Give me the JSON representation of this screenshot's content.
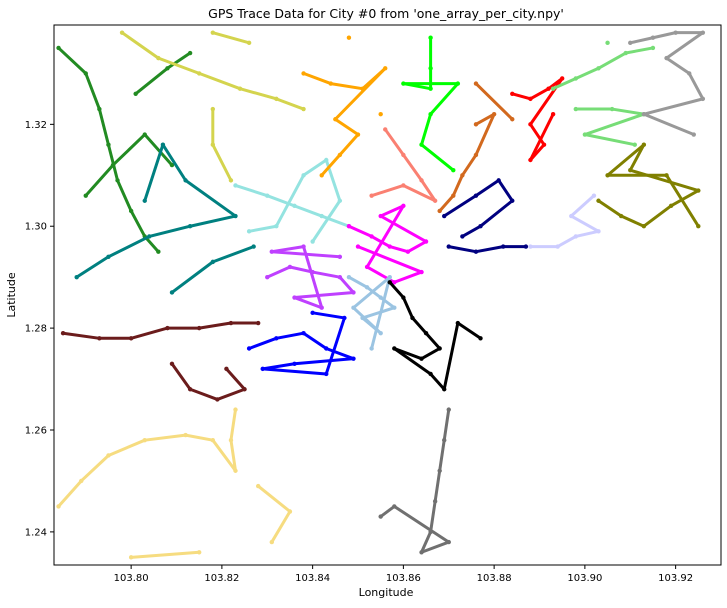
{
  "chart_data": {
    "type": "scatter",
    "title": "GPS Trace Data for City #0 from 'one_array_per_city.npy'",
    "xlabel": "Longitude",
    "ylabel": "Latitude",
    "xlim": [
      103.783,
      103.93
    ],
    "ylim": [
      1.2335,
      1.3395
    ],
    "xticks": [
      103.8,
      103.82,
      103.84,
      103.86,
      103.88,
      103.9,
      103.92
    ],
    "xtick_labels": [
      "103.80",
      "103.82",
      "103.84",
      "103.86",
      "103.88",
      "103.90",
      "103.92"
    ],
    "yticks": [
      1.24,
      1.26,
      1.28,
      1.3,
      1.32
    ],
    "ytick_labels": [
      "1.24",
      "1.26",
      "1.28",
      "1.30",
      "1.32"
    ],
    "grid": false,
    "legend": "none",
    "series": [
      {
        "color": "#228B22",
        "points": [
          [
            103.784,
            1.335
          ],
          [
            103.79,
            1.33
          ],
          [
            103.793,
            1.323
          ],
          [
            103.795,
            1.316
          ],
          [
            103.797,
            1.309
          ],
          [
            103.8,
            1.303
          ],
          [
            103.803,
            1.298
          ],
          [
            103.806,
            1.295
          ],
          [
            103.79,
            1.306
          ],
          [
            103.796,
            1.312
          ],
          [
            103.803,
            1.318
          ],
          [
            103.809,
            1.312
          ],
          [
            103.801,
            1.326
          ],
          [
            103.808,
            1.331
          ],
          [
            103.813,
            1.334
          ]
        ]
      },
      {
        "color": "#D4D44E",
        "points": [
          [
            103.798,
            1.338
          ],
          [
            103.806,
            1.333
          ],
          [
            103.815,
            1.33
          ],
          [
            103.824,
            1.327
          ],
          [
            103.832,
            1.325
          ],
          [
            103.838,
            1.323
          ],
          [
            103.818,
            1.323
          ],
          [
            103.818,
            1.316
          ],
          [
            103.822,
            1.309
          ],
          [
            103.826,
            1.336
          ],
          [
            103.818,
            1.338
          ]
        ]
      },
      {
        "color": "#008080",
        "points": [
          [
            103.788,
            1.29
          ],
          [
            103.795,
            1.294
          ],
          [
            103.804,
            1.298
          ],
          [
            103.813,
            1.3
          ],
          [
            103.823,
            1.302
          ],
          [
            103.812,
            1.309
          ],
          [
            103.807,
            1.316
          ],
          [
            103.803,
            1.305
          ],
          [
            103.809,
            1.287
          ],
          [
            103.818,
            1.293
          ],
          [
            103.827,
            1.296
          ]
        ]
      },
      {
        "color": "#94E3E0",
        "points": [
          [
            103.823,
            1.308
          ],
          [
            103.83,
            1.306
          ],
          [
            103.836,
            1.304
          ],
          [
            103.842,
            1.302
          ],
          [
            103.848,
            1.3
          ],
          [
            103.826,
            1.299
          ],
          [
            103.832,
            1.3
          ],
          [
            103.838,
            1.31
          ],
          [
            103.843,
            1.313
          ],
          [
            103.846,
            1.305
          ],
          [
            103.84,
            1.297
          ]
        ]
      },
      {
        "color": "#FFA500",
        "points": [
          [
            103.838,
            1.33
          ],
          [
            103.844,
            1.328
          ],
          [
            103.851,
            1.327
          ],
          [
            103.856,
            1.331
          ],
          [
            103.845,
            1.321
          ],
          [
            103.85,
            1.318
          ],
          [
            103.846,
            1.314
          ],
          [
            103.842,
            1.31
          ],
          [
            103.855,
            1.322
          ],
          [
            103.848,
            1.337
          ]
        ]
      },
      {
        "color": "#00FF00",
        "points": [
          [
            103.866,
            1.337
          ],
          [
            103.866,
            1.331
          ],
          [
            103.866,
            1.327
          ],
          [
            103.86,
            1.328
          ],
          [
            103.872,
            1.328
          ],
          [
            103.866,
            1.322
          ],
          [
            103.864,
            1.316
          ],
          [
            103.871,
            1.311
          ]
        ]
      },
      {
        "color": "#FA8072",
        "points": [
          [
            103.856,
            1.319
          ],
          [
            103.86,
            1.314
          ],
          [
            103.864,
            1.309
          ],
          [
            103.867,
            1.305
          ],
          [
            103.86,
            1.308
          ],
          [
            103.853,
            1.306
          ]
        ]
      },
      {
        "color": "#D2691E",
        "points": [
          [
            103.876,
            1.32
          ],
          [
            103.88,
            1.322
          ],
          [
            103.876,
            1.314
          ],
          [
            103.873,
            1.31
          ],
          [
            103.871,
            1.306
          ],
          [
            103.868,
            1.303
          ],
          [
            103.876,
            1.328
          ],
          [
            103.884,
            1.321
          ]
        ]
      },
      {
        "color": "#FF0000",
        "points": [
          [
            103.884,
            1.326
          ],
          [
            103.888,
            1.325
          ],
          [
            103.892,
            1.327
          ],
          [
            103.895,
            1.329
          ],
          [
            103.888,
            1.32
          ],
          [
            103.891,
            1.316
          ],
          [
            103.888,
            1.313
          ],
          [
            103.893,
            1.322
          ]
        ]
      },
      {
        "color": "#77DD77",
        "points": [
          [
            103.893,
            1.327
          ],
          [
            103.898,
            1.329
          ],
          [
            103.903,
            1.331
          ],
          [
            103.909,
            1.334
          ],
          [
            103.915,
            1.335
          ],
          [
            103.898,
            1.323
          ],
          [
            103.906,
            1.323
          ],
          [
            103.913,
            1.322
          ],
          [
            103.9,
            1.318
          ],
          [
            103.911,
            1.316
          ],
          [
            103.905,
            1.336
          ]
        ]
      },
      {
        "color": "#999999",
        "points": [
          [
            103.91,
            1.336
          ],
          [
            103.915,
            1.337
          ],
          [
            103.92,
            1.338
          ],
          [
            103.926,
            1.338
          ],
          [
            103.918,
            1.333
          ],
          [
            103.923,
            1.33
          ],
          [
            103.926,
            1.325
          ],
          [
            103.913,
            1.322
          ],
          [
            103.924,
            1.318
          ]
        ]
      },
      {
        "color": "#808000",
        "points": [
          [
            103.903,
            1.305
          ],
          [
            103.908,
            1.302
          ],
          [
            103.913,
            1.3
          ],
          [
            103.919,
            1.304
          ],
          [
            103.925,
            1.307
          ],
          [
            103.91,
            1.311
          ],
          [
            103.913,
            1.316
          ],
          [
            103.905,
            1.31
          ],
          [
            103.918,
            1.31
          ],
          [
            103.925,
            1.3
          ]
        ]
      },
      {
        "color": "#000080",
        "points": [
          [
            103.87,
            1.296
          ],
          [
            103.876,
            1.295
          ],
          [
            103.882,
            1.296
          ],
          [
            103.887,
            1.296
          ],
          [
            103.869,
            1.302
          ],
          [
            103.876,
            1.306
          ],
          [
            103.881,
            1.309
          ],
          [
            103.884,
            1.305
          ],
          [
            103.877,
            1.3
          ],
          [
            103.873,
            1.298
          ]
        ]
      },
      {
        "color": "#CCCCFF",
        "points": [
          [
            103.888,
            1.296
          ],
          [
            103.894,
            1.296
          ],
          [
            103.898,
            1.298
          ],
          [
            103.903,
            1.299
          ],
          [
            103.897,
            1.302
          ],
          [
            103.902,
            1.306
          ]
        ]
      },
      {
        "color": "#FF00FF",
        "points": [
          [
            103.848,
            1.3
          ],
          [
            103.853,
            1.298
          ],
          [
            103.857,
            1.296
          ],
          [
            103.861,
            1.295
          ],
          [
            103.865,
            1.297
          ],
          [
            103.855,
            1.302
          ],
          [
            103.86,
            1.304
          ],
          [
            103.852,
            1.292
          ],
          [
            103.858,
            1.289
          ],
          [
            103.864,
            1.291
          ],
          [
            103.85,
            1.296
          ]
        ]
      },
      {
        "color": "#BF40FF",
        "points": [
          [
            103.83,
            1.29
          ],
          [
            103.835,
            1.292
          ],
          [
            103.84,
            1.291
          ],
          [
            103.846,
            1.29
          ],
          [
            103.849,
            1.287
          ],
          [
            103.836,
            1.286
          ],
          [
            103.842,
            1.284
          ],
          [
            103.838,
            1.296
          ],
          [
            103.831,
            1.295
          ],
          [
            103.846,
            1.294
          ]
        ]
      },
      {
        "color": "#9BC4E2",
        "points": [
          [
            103.848,
            1.29
          ],
          [
            103.852,
            1.288
          ],
          [
            103.855,
            1.286
          ],
          [
            103.858,
            1.284
          ],
          [
            103.851,
            1.282
          ],
          [
            103.855,
            1.279
          ],
          [
            103.849,
            1.284
          ],
          [
            103.857,
            1.29
          ],
          [
            103.853,
            1.276
          ]
        ]
      },
      {
        "color": "#0000FF",
        "points": [
          [
            103.826,
            1.276
          ],
          [
            103.832,
            1.278
          ],
          [
            103.838,
            1.279
          ],
          [
            103.843,
            1.276
          ],
          [
            103.849,
            1.274
          ],
          [
            103.836,
            1.273
          ],
          [
            103.829,
            1.272
          ],
          [
            103.843,
            1.271
          ],
          [
            103.847,
            1.282
          ],
          [
            103.84,
            1.283
          ]
        ]
      },
      {
        "color": "#000000",
        "points": [
          [
            103.857,
            1.289
          ],
          [
            103.86,
            1.286
          ],
          [
            103.862,
            1.282
          ],
          [
            103.865,
            1.279
          ],
          [
            103.868,
            1.276
          ],
          [
            103.864,
            1.274
          ],
          [
            103.858,
            1.276
          ],
          [
            103.866,
            1.271
          ],
          [
            103.869,
            1.268
          ],
          [
            103.872,
            1.281
          ],
          [
            103.877,
            1.278
          ]
        ]
      },
      {
        "color": "#707070",
        "points": [
          [
            103.87,
            1.264
          ],
          [
            103.869,
            1.258
          ],
          [
            103.868,
            1.252
          ],
          [
            103.867,
            1.246
          ],
          [
            103.866,
            1.24
          ],
          [
            103.864,
            1.236
          ],
          [
            103.87,
            1.238
          ],
          [
            103.858,
            1.245
          ],
          [
            103.855,
            1.243
          ]
        ]
      },
      {
        "color": "#6B1C1C",
        "points": [
          [
            103.785,
            1.279
          ],
          [
            103.793,
            1.278
          ],
          [
            103.8,
            1.278
          ],
          [
            103.808,
            1.28
          ],
          [
            103.815,
            1.28
          ],
          [
            103.822,
            1.281
          ],
          [
            103.828,
            1.281
          ],
          [
            103.809,
            1.273
          ],
          [
            103.813,
            1.268
          ],
          [
            103.819,
            1.266
          ],
          [
            103.825,
            1.268
          ],
          [
            103.821,
            1.272
          ]
        ]
      },
      {
        "color": "#F6DC80",
        "points": [
          [
            103.823,
            1.264
          ],
          [
            103.822,
            1.258
          ],
          [
            103.823,
            1.252
          ],
          [
            103.818,
            1.258
          ],
          [
            103.812,
            1.259
          ],
          [
            103.803,
            1.258
          ],
          [
            103.795,
            1.255
          ],
          [
            103.789,
            1.25
          ],
          [
            103.784,
            1.245
          ],
          [
            103.828,
            1.249
          ],
          [
            103.835,
            1.244
          ],
          [
            103.831,
            1.238
          ],
          [
            103.815,
            1.236
          ],
          [
            103.8,
            1.235
          ]
        ]
      }
    ]
  }
}
